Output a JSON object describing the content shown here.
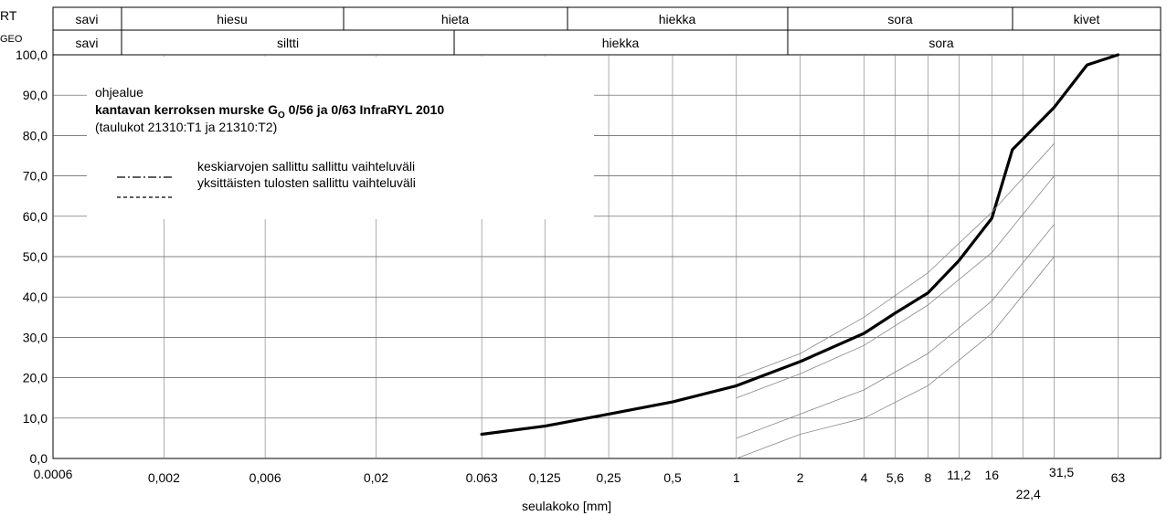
{
  "header": {
    "row_labels": {
      "rt": "RT",
      "geo": "GEO"
    },
    "rt_row": [
      "savi",
      "hiesu",
      "hieta",
      "hiekka",
      "sora",
      "kivet"
    ],
    "geo_row": [
      "savi",
      "siltti",
      "hiekka",
      "sora"
    ]
  },
  "annotation": {
    "line1": "ohjealue",
    "line2_a": "kantavan kerroksen murske G",
    "line2_sub": "O",
    "line2_b": " 0/56 ja 0/63 InfraRYL 2010",
    "line3": "(taulukot 21310:T1 ja 21310:T2)",
    "legend_dashdot": "keskiarvojen sallittu sallittu vaihteluväli",
    "legend_dashed": "yksittäisten tulosten sallittu vaihteluväli"
  },
  "chart_data": {
    "type": "line",
    "xlabel": "seulakoko [mm]",
    "ylabel": "",
    "x_scale": "log",
    "xlim": [
      0.0006,
      100
    ],
    "ylim": [
      0,
      100
    ],
    "x_ticks": [
      "0.0006",
      "0,002",
      "0,006",
      "0,02",
      "0.063",
      "0,125",
      "0,25",
      "0,5",
      "1",
      "2",
      "4",
      "5,6",
      "8",
      "11,2",
      "16",
      "22,4",
      "31,5",
      "63"
    ],
    "y_ticks": [
      "0,0",
      "10,0",
      "20,0",
      "30,0",
      "40,0",
      "50,0",
      "60,0",
      "70,0",
      "80,0",
      "90,0",
      "100,0"
    ],
    "grid": true,
    "series": [
      {
        "style": "thick",
        "x": [
          0.063,
          0.125,
          0.25,
          0.5,
          1,
          2,
          4,
          5.6,
          8,
          11.2,
          16,
          20,
          31.5,
          45,
          63
        ],
        "y": [
          6,
          8,
          11,
          14,
          18,
          24,
          31,
          36,
          41,
          49,
          59.5,
          76.5,
          87,
          97.5,
          100
        ]
      },
      {
        "style": "thin",
        "x": [
          1,
          2,
          4,
          8,
          16,
          31.5
        ],
        "y": [
          20,
          26,
          35,
          46,
          61,
          78
        ]
      },
      {
        "style": "thin",
        "x": [
          1,
          2,
          4,
          8,
          16,
          31.5
        ],
        "y": [
          15,
          21,
          28,
          38,
          51,
          70
        ]
      },
      {
        "style": "thin",
        "x": [
          1,
          2,
          4,
          8,
          16,
          31.5
        ],
        "y": [
          5,
          11,
          17,
          26,
          39,
          58
        ]
      },
      {
        "style": "thin",
        "x": [
          1,
          2,
          4,
          8,
          16,
          31.5
        ],
        "y": [
          0,
          6,
          10,
          18,
          31,
          50
        ]
      }
    ]
  }
}
